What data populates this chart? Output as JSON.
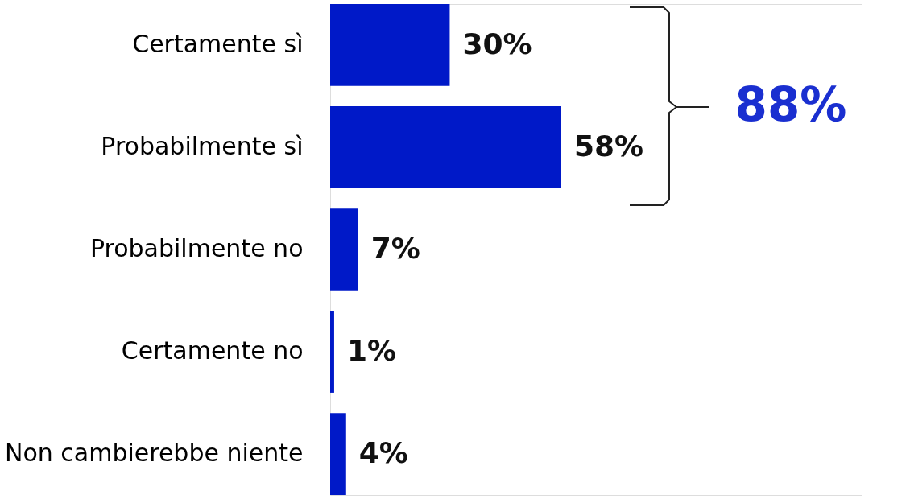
{
  "chart_data": {
    "type": "bar",
    "orientation": "horizontal",
    "categories": [
      "Certamente sì",
      "Probabilmente sì",
      "Probabilmente no",
      "Certamente no",
      "Non cambierebbe niente"
    ],
    "values": [
      30,
      58,
      7,
      1,
      4
    ],
    "value_labels": [
      "30%",
      "58%",
      "7%",
      "1%",
      "4%"
    ],
    "color": "#0019c8",
    "annotations": [
      "88%"
    ]
  }
}
